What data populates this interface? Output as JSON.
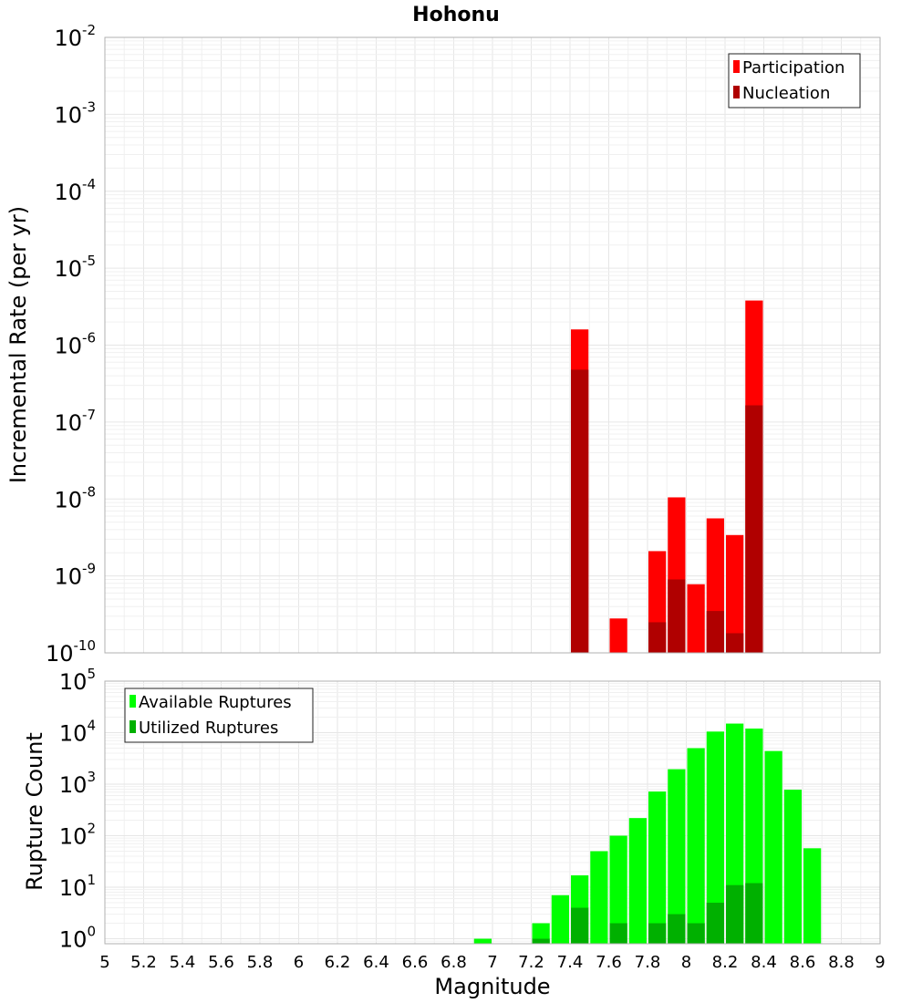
{
  "chart_data": [
    {
      "type": "bar",
      "title": "Hohonu",
      "xlabel": "",
      "ylabel": "Incremental Rate (per yr)",
      "yscale": "log",
      "ylim": [
        1e-10,
        0.01
      ],
      "xlim": [
        5,
        9
      ],
      "grid": true,
      "legend_position": "top-right",
      "overlay": true,
      "series": [
        {
          "name": "Participation",
          "color": "#ff0000",
          "x": [
            7.45,
            7.65,
            7.85,
            7.95,
            8.05,
            8.15,
            8.25,
            8.35
          ],
          "values": [
            1.6e-06,
            2.8e-10,
            2.1e-09,
            1.05e-08,
            7.8e-10,
            5.6e-09,
            3.4e-09,
            3.8e-06
          ]
        },
        {
          "name": "Nucleation",
          "color": "#b00000",
          "x": [
            7.45,
            7.85,
            7.95,
            8.15,
            8.25,
            8.35
          ],
          "values": [
            4.8e-07,
            2.5e-10,
            9e-10,
            3.5e-10,
            1.8e-10,
            1.65e-07
          ]
        }
      ]
    },
    {
      "type": "bar",
      "title": "",
      "xlabel": "Magnitude",
      "ylabel": "Rupture Count",
      "yscale": "log",
      "ylim": [
        0.8,
        100000.0
      ],
      "xlim": [
        5,
        9
      ],
      "grid": true,
      "legend_position": "top-left",
      "overlay": true,
      "x_ticks": [
        "5",
        "5.2",
        "5.4",
        "5.6",
        "5.8",
        "6",
        "6.2",
        "6.4",
        "6.6",
        "6.8",
        "7",
        "7.2",
        "7.4",
        "7.6",
        "7.8",
        "8",
        "8.2",
        "8.4",
        "8.6",
        "8.8",
        "9"
      ],
      "series": [
        {
          "name": "Available Ruptures",
          "color": "#00ff00",
          "x": [
            6.95,
            7.25,
            7.35,
            7.45,
            7.55,
            7.65,
            7.75,
            7.85,
            7.95,
            8.05,
            8.15,
            8.25,
            8.35,
            8.45,
            8.55,
            8.65
          ],
          "values": [
            1,
            2,
            7,
            17,
            50,
            100,
            220,
            720,
            1950,
            5000,
            10500,
            15000,
            12000,
            4400,
            780,
            57
          ]
        },
        {
          "name": "Utilized Ruptures",
          "color": "#00b000",
          "x": [
            7.25,
            7.45,
            7.65,
            7.85,
            7.95,
            8.05,
            8.15,
            8.25,
            8.35
          ],
          "values": [
            1,
            4,
            2,
            2,
            3,
            2,
            5,
            11,
            12
          ]
        }
      ]
    }
  ]
}
